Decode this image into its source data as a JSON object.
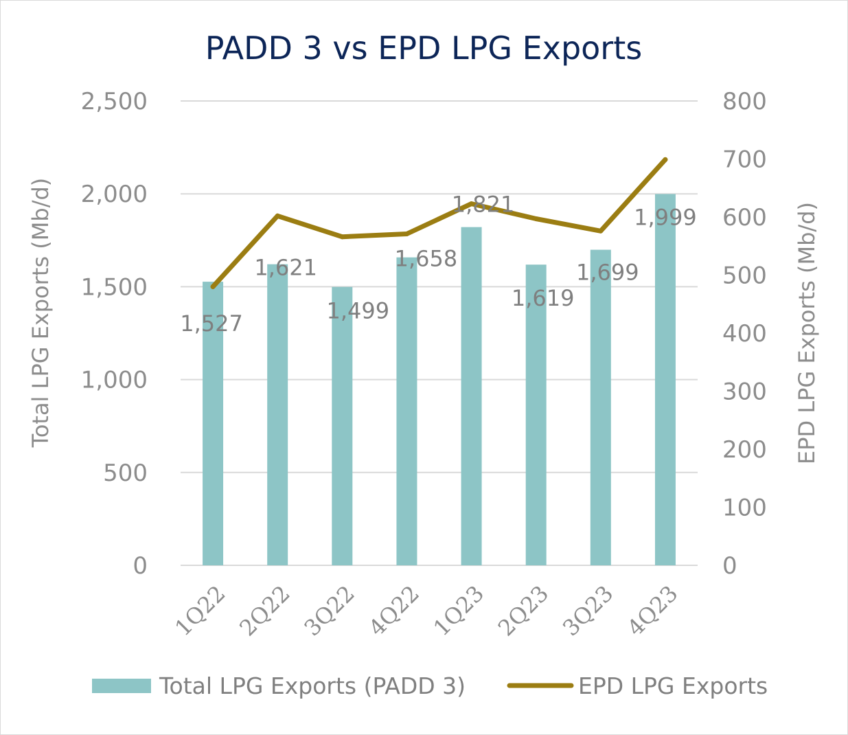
{
  "chart_data": {
    "type": "bar+line",
    "title": "PADD 3 vs EPD LPG Exports",
    "categories": [
      "1Q22",
      "2Q22",
      "3Q22",
      "4Q22",
      "1Q23",
      "2Q23",
      "3Q23",
      "4Q23"
    ],
    "series": [
      {
        "name": "Total LPG Exports (PADD 3)",
        "type": "bar",
        "axis": "left",
        "color": "#8dc5c6",
        "values": [
          1527,
          1621,
          1499,
          1658,
          1821,
          1619,
          1699,
          1999
        ],
        "labels": [
          "1,527",
          "1,621",
          "1,499",
          "1,658",
          "1,821",
          "1,619",
          "1,699",
          "1,999"
        ]
      },
      {
        "name": "EPD LPG Exports",
        "type": "line",
        "axis": "right",
        "color": "#9b7d12",
        "values": [
          480,
          602,
          566,
          571,
          623,
          597,
          576,
          699
        ]
      }
    ],
    "ylabel_left": "Total LPG Exports (Mb/d)",
    "ylabel_right": "EPD LPG Exports (Mb/d)",
    "ylim_left": [
      0,
      2500
    ],
    "ylim_right": [
      0,
      800
    ],
    "yticks_left": [
      "0",
      "500",
      "1,000",
      "1,500",
      "2,000",
      "2,500"
    ],
    "yticks_right": [
      "0",
      "100",
      "200",
      "300",
      "400",
      "500",
      "600",
      "700",
      "800"
    ],
    "grid": true,
    "legend_position": "bottom",
    "colors": {
      "title": "#0c2557",
      "text": "#8c8c8c",
      "grid": "#d9d9d9"
    }
  }
}
